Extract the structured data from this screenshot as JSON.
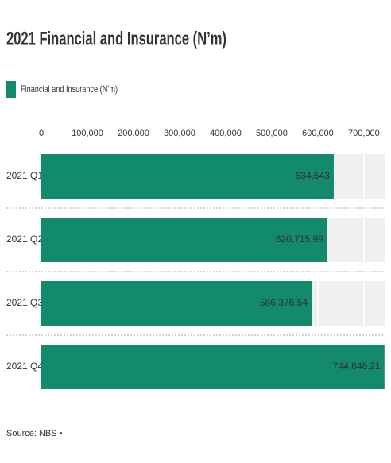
{
  "chart_data": {
    "type": "hbar",
    "title": "2021 Financial and Insurance (N’m)",
    "categories": [
      "2021 Q1",
      "2021 Q2",
      "2021 Q3",
      "2021 Q4"
    ],
    "series": [
      {
        "name": "Financial and Insurance (N’m)",
        "color": "#138a6c",
        "values": [
          634543,
          620715.99,
          586376.54,
          744648.21
        ],
        "value_labels": [
          "634,543",
          "620,715.99",
          "586,376.54",
          "744,648.21"
        ]
      }
    ],
    "xlim": [
      0,
      745000
    ],
    "xticks": [
      0,
      {
        "value": 100000,
        "label": "100,000"
      },
      {
        "value": 200000,
        "label": "200,000"
      },
      {
        "value": 300000,
        "label": "300,000"
      },
      {
        "value": 400000,
        "label": "400,000"
      },
      {
        "value": 500000,
        "label": "500,000"
      },
      {
        "value": 600000,
        "label": "600,000"
      },
      {
        "value": 700000,
        "label": "700,000"
      }
    ],
    "grid": true,
    "source": "Source: NBS •"
  }
}
